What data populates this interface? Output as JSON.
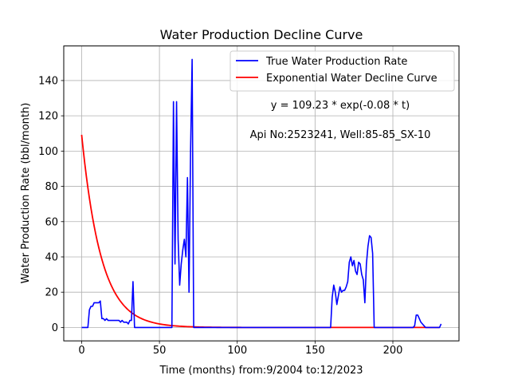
{
  "chart_data": {
    "type": "line",
    "title": "Water Production Decline Curve",
    "xlabel": "Time (months) from:9/2004 to:12/2023",
    "ylabel": "Water Production Rate (bbl/month)",
    "xlim": [
      -11.5,
      242.5
    ],
    "ylim": [
      -7.6,
      159.6
    ],
    "xticks": [
      0,
      50,
      100,
      150,
      200
    ],
    "yticks": [
      0,
      20,
      40,
      60,
      80,
      100,
      120,
      140
    ],
    "grid": true,
    "legend_position": "top-right",
    "annotations": [
      "y = 109.23 * exp(-0.08 * t)",
      "Api No:2523241, Well:85-85_SX-10"
    ],
    "series": [
      {
        "name": "True Water Production Rate",
        "color": "#0000ff",
        "points": [
          [
            0,
            0
          ],
          [
            3,
            0
          ],
          [
            4,
            0
          ],
          [
            5,
            10
          ],
          [
            6,
            12
          ],
          [
            7,
            12
          ],
          [
            8,
            14
          ],
          [
            10,
            14
          ],
          [
            11,
            14
          ],
          [
            12,
            15
          ],
          [
            13,
            5
          ],
          [
            14,
            5
          ],
          [
            15,
            4
          ],
          [
            16,
            5
          ],
          [
            17,
            4
          ],
          [
            20,
            4
          ],
          [
            22,
            4
          ],
          [
            24,
            4
          ],
          [
            25,
            3
          ],
          [
            26,
            4
          ],
          [
            27,
            3
          ],
          [
            28,
            3
          ],
          [
            29,
            3
          ],
          [
            30,
            2
          ],
          [
            31,
            4
          ],
          [
            32,
            4
          ],
          [
            33,
            26
          ],
          [
            34,
            0
          ],
          [
            40,
            0
          ],
          [
            50,
            0
          ],
          [
            58,
            0
          ],
          [
            59,
            128
          ],
          [
            60,
            36
          ],
          [
            61,
            128
          ],
          [
            62,
            50
          ],
          [
            63,
            24
          ],
          [
            64,
            36
          ],
          [
            65,
            44
          ],
          [
            66,
            50
          ],
          [
            67,
            40
          ],
          [
            68,
            85
          ],
          [
            69,
            20
          ],
          [
            70,
            100
          ],
          [
            71,
            152
          ],
          [
            72,
            0
          ],
          [
            80,
            0
          ],
          [
            100,
            0
          ],
          [
            120,
            0
          ],
          [
            140,
            0
          ],
          [
            158,
            0
          ],
          [
            160,
            0
          ],
          [
            161,
            17
          ],
          [
            162,
            24
          ],
          [
            163,
            20
          ],
          [
            164,
            13
          ],
          [
            165,
            18
          ],
          [
            166,
            23
          ],
          [
            167,
            20
          ],
          [
            168,
            21
          ],
          [
            169,
            21
          ],
          [
            170,
            23
          ],
          [
            171,
            26
          ],
          [
            172,
            37
          ],
          [
            173,
            40
          ],
          [
            174,
            35
          ],
          [
            175,
            38
          ],
          [
            176,
            32
          ],
          [
            177,
            30
          ],
          [
            178,
            37
          ],
          [
            179,
            36
          ],
          [
            180,
            30
          ],
          [
            181,
            27
          ],
          [
            182,
            14
          ],
          [
            183,
            36
          ],
          [
            184,
            46
          ],
          [
            185,
            52
          ],
          [
            186,
            51
          ],
          [
            187,
            42
          ],
          [
            188,
            0
          ],
          [
            190,
            0
          ],
          [
            200,
            0
          ],
          [
            213,
            0
          ],
          [
            214,
            1
          ],
          [
            215,
            7
          ],
          [
            216,
            7
          ],
          [
            217,
            5
          ],
          [
            218,
            3
          ],
          [
            219,
            2
          ],
          [
            220,
            1
          ],
          [
            221,
            0
          ],
          [
            225,
            0
          ],
          [
            230,
            0
          ],
          [
            231,
            2
          ]
        ]
      },
      {
        "name": "Exponential Water Decline Curve",
        "color": "#ff0000",
        "a": 109.23,
        "b": 0.08,
        "x_range": [
          0,
          230
        ]
      }
    ]
  }
}
